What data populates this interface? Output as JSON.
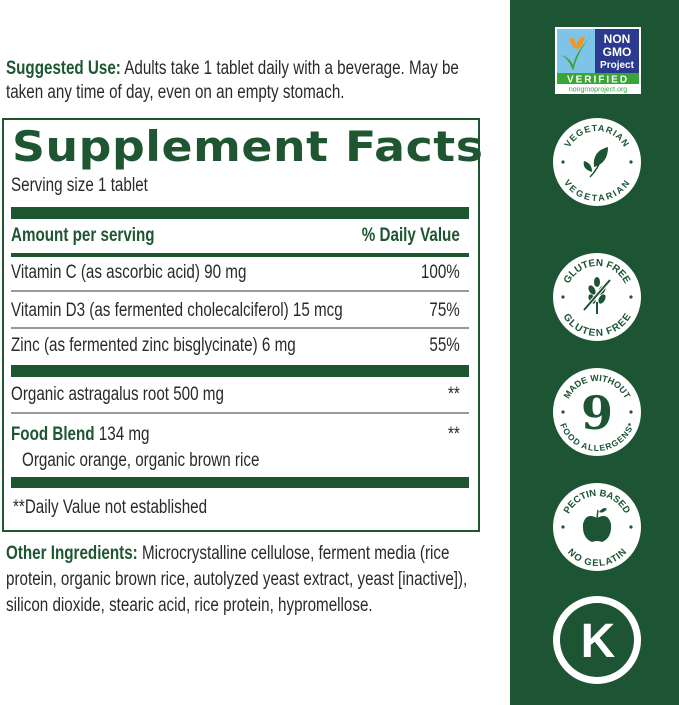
{
  "suggested_use": {
    "label": "Suggested Use:",
    "text": " Adults take 1 tablet daily with a beverage. May be taken any time of day, even on an empty stomach."
  },
  "facts": {
    "title": "Supplement Facts",
    "serving_size": "Serving size 1 tablet",
    "header_amount": "Amount per serving",
    "header_dv": "% Daily Value",
    "rows": [
      {
        "name": "Vitamin C (as ascorbic acid) 90 mg",
        "dv": "100%"
      },
      {
        "name": "Vitamin D3 (as fermented cholecalciferol) 15 mcg",
        "dv": "75%"
      },
      {
        "name": "Zinc (as fermented zinc bisglycinate) 6 mg",
        "dv": "55%"
      },
      {
        "name": "Organic astragalus root 500 mg",
        "dv": "**"
      }
    ],
    "blend": {
      "name": "Food Blend",
      "amount": " 134 mg",
      "dv": "**",
      "ingredients": "Organic orange, organic brown rice"
    },
    "footnote": "**Daily Value not established"
  },
  "other_ingredients": {
    "label": "Other Ingredients:",
    "text": " Microcrystalline cellulose, ferment media (rice protein, organic brown rice, autolyzed yeast extract, yeast [inactive]), silicon dioxide, stearic acid, rice protein, hypromellose."
  },
  "badges": {
    "colors": {
      "sidebar": "#1c5434",
      "badge": "#ffffff",
      "nongmo_blue": "#2b3990",
      "nongmo_green": "#3aa537",
      "butterfly": "#f7941d"
    },
    "nongmo": {
      "line1": "NON",
      "line2": "GMO",
      "line3": "Project",
      "verified": "VERIFIED",
      "url": "nongmoproject.org"
    },
    "vegetarian": {
      "top": "VEGETARIAN",
      "bottom": "VEGETARIAN",
      "icon": "leaf-icon"
    },
    "gluten_free": {
      "top": "GLUTEN FREE",
      "bottom": "GLUTEN FREE",
      "icon": "crossed-wheat-icon"
    },
    "allergens": {
      "top": "MADE WITHOUT",
      "number": "9",
      "bottom": "FOOD ALLERGENS*"
    },
    "pectin": {
      "top": "PECTIN BASED",
      "bottom": "NO GELATIN",
      "icon": "apple-icon"
    },
    "kosher": {
      "letter": "K"
    }
  }
}
